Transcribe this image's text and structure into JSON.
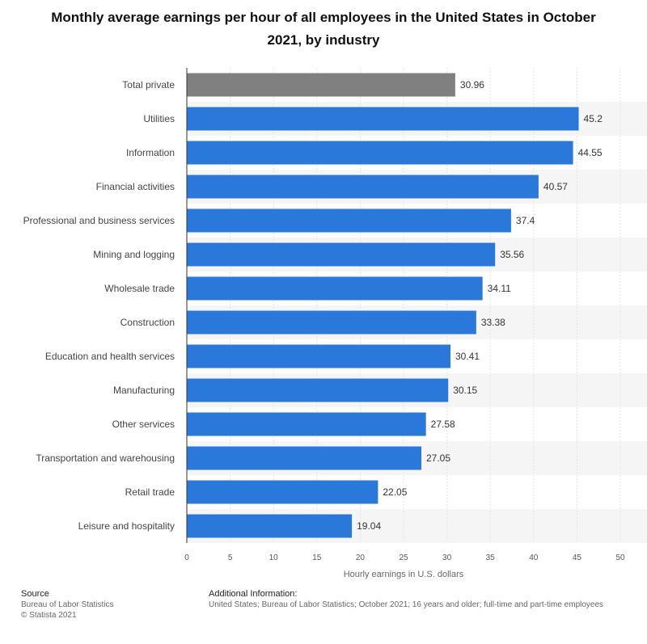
{
  "chart_data": {
    "type": "bar",
    "orientation": "horizontal",
    "title": "Monthly average earnings per hour of all employees in the United States in October 2021, by industry",
    "xlabel": "Hourly earnings in U.S. dollars",
    "ylabel": "",
    "xlim": [
      0,
      50
    ],
    "ticks": [
      0,
      5,
      10,
      15,
      20,
      25,
      30,
      35,
      40,
      45,
      50
    ],
    "grid": true,
    "colors": {
      "highlight": "#808080",
      "default": "#2a78d9",
      "band": "#f5f5f5"
    },
    "categories": [
      "Total private",
      "Utilities",
      "Information",
      "Financial activities",
      "Professional and business services",
      "Mining and logging",
      "Wholesale trade",
      "Construction",
      "Education and health services",
      "Manufacturing",
      "Other services",
      "Transportation and warehousing",
      "Retail trade",
      "Leisure and hospitality"
    ],
    "values": [
      30.96,
      45.2,
      44.55,
      40.57,
      37.4,
      35.56,
      34.11,
      33.38,
      30.41,
      30.15,
      27.58,
      27.05,
      22.05,
      19.04
    ],
    "value_labels": [
      "30.96",
      "45.2",
      "44.55",
      "40.57",
      "37.4",
      "35.56",
      "34.11",
      "33.38",
      "30.41",
      "30.15",
      "27.58",
      "27.05",
      "22.05",
      "19.04"
    ]
  },
  "footer": {
    "source_heading": "Source",
    "source_lines": [
      "Bureau of Labor Statistics",
      "© Statista 2021"
    ],
    "info_heading": "Additional Information:",
    "info_text": "United States; Bureau of Labor Statistics; October 2021; 16 years and older; full-time and part-time employees"
  }
}
